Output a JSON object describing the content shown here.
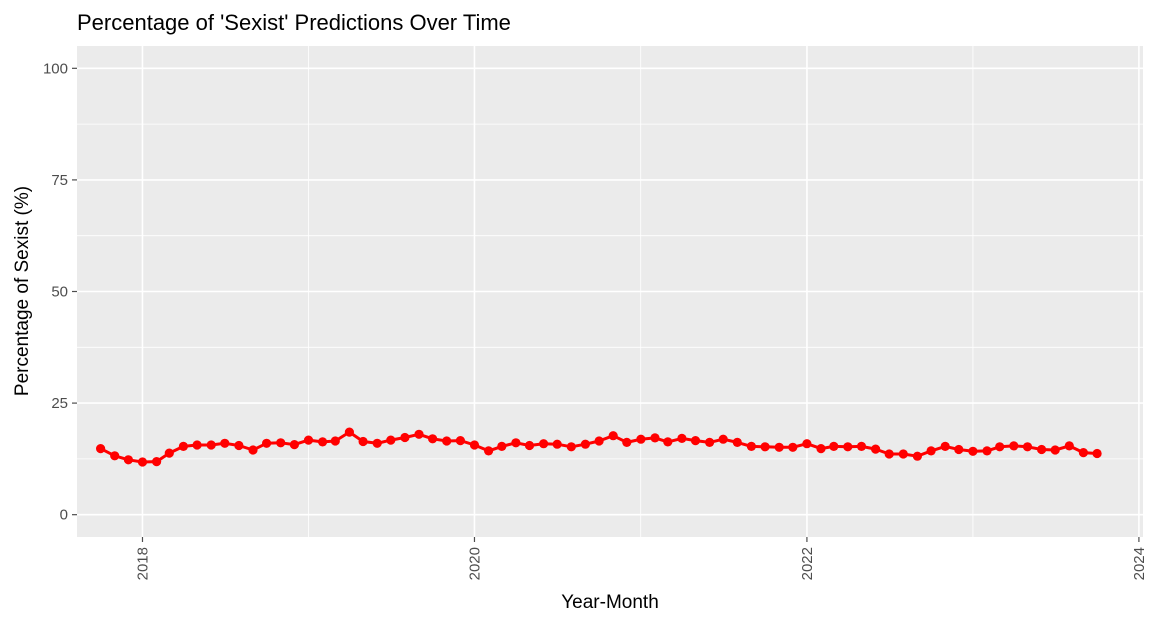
{
  "chart_data": {
    "type": "line",
    "title": "Percentage of 'Sexist' Predictions Over Time",
    "xlabel": "Year-Month",
    "ylabel": "Percentage of Sexist (%)",
    "xlim": [
      "2017-08-10",
      "2024-01-10"
    ],
    "ylim": [
      -5,
      105
    ],
    "x_ticks": [
      "2018",
      "2020",
      "2022",
      "2024"
    ],
    "y_ticks": [
      "0",
      "25",
      "50",
      "75",
      "100"
    ],
    "grid": true,
    "legend": "none",
    "colors": {
      "panel": "#EBEBEB",
      "grid": "#FFFFFF",
      "series": "#FF0000",
      "tick": "#4D4D4D"
    },
    "series": [
      {
        "x": [
          "2017-10",
          "2017-11",
          "2017-12",
          "2018-01",
          "2018-02",
          "2018-03",
          "2018-04",
          "2018-05",
          "2018-06",
          "2018-07",
          "2018-08",
          "2018-09",
          "2018-10",
          "2018-11",
          "2018-12",
          "2019-01",
          "2019-02",
          "2019-03",
          "2019-04",
          "2019-05",
          "2019-06",
          "2019-07",
          "2019-08",
          "2019-09",
          "2019-10",
          "2019-11",
          "2019-12",
          "2020-01",
          "2020-02",
          "2020-03",
          "2020-04",
          "2020-05",
          "2020-06",
          "2020-07",
          "2020-08",
          "2020-09",
          "2020-10",
          "2020-11",
          "2020-12",
          "2021-01",
          "2021-02",
          "2021-03",
          "2021-04",
          "2021-05",
          "2021-06",
          "2021-07",
          "2021-08",
          "2021-09",
          "2021-10",
          "2021-11",
          "2021-12",
          "2022-01",
          "2022-02",
          "2022-03",
          "2022-04",
          "2022-05",
          "2022-06",
          "2022-07",
          "2022-08",
          "2022-09",
          "2022-10",
          "2022-11",
          "2022-12",
          "2023-01",
          "2023-02",
          "2023-03",
          "2023-04",
          "2023-05",
          "2023-06",
          "2023-07",
          "2023-08",
          "2023-09",
          "2023-10"
        ],
        "values": [
          14.8,
          13.2,
          12.3,
          11.8,
          11.9,
          13.8,
          15.3,
          15.6,
          15.6,
          16.0,
          15.5,
          14.5,
          16.0,
          16.1,
          15.7,
          16.7,
          16.3,
          16.5,
          18.5,
          16.4,
          16.0,
          16.7,
          17.3,
          18.0,
          17.0,
          16.5,
          16.6,
          15.6,
          14.3,
          15.3,
          16.1,
          15.5,
          15.9,
          15.8,
          15.2,
          15.8,
          16.5,
          17.7,
          16.2,
          16.9,
          17.2,
          16.3,
          17.1,
          16.6,
          16.2,
          16.9,
          16.2,
          15.3,
          15.2,
          15.1,
          15.1,
          15.9,
          14.8,
          15.3,
          15.2,
          15.3,
          14.7,
          13.6,
          13.6,
          13.1,
          14.3,
          15.3,
          14.6,
          14.2,
          14.3,
          15.2,
          15.4,
          15.2,
          14.6,
          14.5,
          15.4,
          13.9,
          13.7
        ]
      }
    ]
  }
}
